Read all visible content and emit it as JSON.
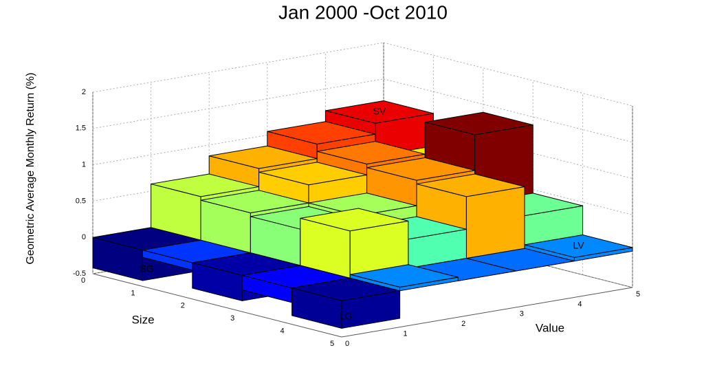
{
  "chart_data": {
    "type": "bar3d",
    "title": "Jan 2000 -Oct 2010",
    "xlabel": "Size",
    "ylabel": "Value",
    "zlabel": "Geometric Average Monthly Return (%)",
    "xlim": [
      0,
      5
    ],
    "ylim": [
      0,
      5
    ],
    "zlim": [
      -0.5,
      2
    ],
    "xticks": [
      0,
      1,
      2,
      3,
      4,
      5
    ],
    "yticks": [
      0,
      1,
      2,
      3,
      4,
      5
    ],
    "zticks": [
      -0.5,
      0,
      0.5,
      1,
      1.5,
      2
    ],
    "colormap": "jet",
    "grid": true,
    "values": [
      [
        -0.42,
        0.6,
        0.85,
        1.05,
        1.2
      ],
      [
        -0.1,
        0.55,
        0.8,
        0.95,
        0.75
      ],
      [
        -0.35,
        0.5,
        0.55,
        0.9,
        1.39
      ],
      [
        -0.2,
        0.65,
        0.4,
        0.85,
        0.45
      ],
      [
        -0.38,
        0.05,
        0.0,
        0.0,
        0.05
      ]
    ],
    "annotations": [
      "SG",
      "SV",
      "LG",
      "LV"
    ]
  }
}
